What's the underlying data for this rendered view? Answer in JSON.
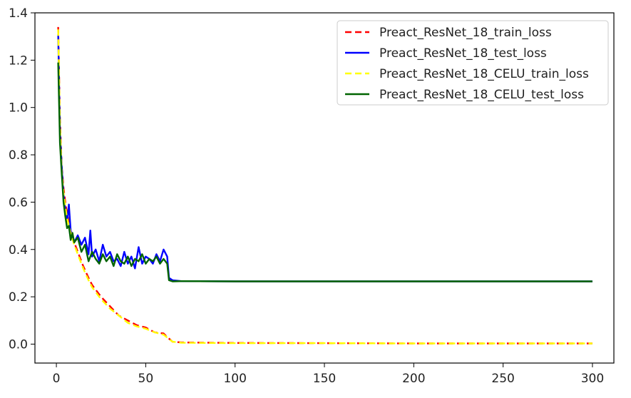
{
  "chart_data": {
    "type": "line",
    "title": "",
    "xlabel": "",
    "ylabel": "",
    "xlim": [
      -12,
      312
    ],
    "ylim": [
      -0.08,
      1.4
    ],
    "x_ticks": [
      0,
      50,
      100,
      150,
      200,
      250,
      300
    ],
    "y_ticks": [
      0.0,
      0.2,
      0.4,
      0.6,
      0.8,
      1.0,
      1.2,
      1.4
    ],
    "x_tick_labels": [
      "0",
      "50",
      "100",
      "150",
      "200",
      "250",
      "300"
    ],
    "y_tick_labels": [
      "0.0",
      "0.2",
      "0.4",
      "0.6",
      "0.8",
      "1.0",
      "1.2",
      "1.4"
    ],
    "grid": false,
    "legend_position": "top-right",
    "series": [
      {
        "name": "Preact_ResNet_18_train_loss",
        "color": "#ff0000",
        "style": "dashed",
        "points": [
          [
            1,
            1.34
          ],
          [
            2,
            0.95
          ],
          [
            3,
            0.75
          ],
          [
            4,
            0.66
          ],
          [
            5,
            0.6
          ],
          [
            6,
            0.55
          ],
          [
            8,
            0.48
          ],
          [
            10,
            0.43
          ],
          [
            12,
            0.39
          ],
          [
            15,
            0.33
          ],
          [
            18,
            0.28
          ],
          [
            20,
            0.25
          ],
          [
            25,
            0.2
          ],
          [
            30,
            0.16
          ],
          [
            35,
            0.12
          ],
          [
            40,
            0.1
          ],
          [
            45,
            0.08
          ],
          [
            50,
            0.07
          ],
          [
            55,
            0.05
          ],
          [
            60,
            0.045
          ],
          [
            62,
            0.03
          ],
          [
            65,
            0.01
          ],
          [
            70,
            0.007
          ],
          [
            100,
            0.005
          ],
          [
            150,
            0.004
          ],
          [
            200,
            0.003
          ],
          [
            250,
            0.003
          ],
          [
            300,
            0.003
          ]
        ]
      },
      {
        "name": "Preact_ResNet_18_test_loss",
        "color": "#0000ff",
        "style": "solid",
        "points": [
          [
            1,
            1.31
          ],
          [
            2,
            0.9
          ],
          [
            3,
            0.75
          ],
          [
            4,
            0.63
          ],
          [
            5,
            0.57
          ],
          [
            6,
            0.52
          ],
          [
            7,
            0.59
          ],
          [
            8,
            0.48
          ],
          [
            9,
            0.45
          ],
          [
            10,
            0.43
          ],
          [
            12,
            0.46
          ],
          [
            14,
            0.42
          ],
          [
            16,
            0.45
          ],
          [
            18,
            0.38
          ],
          [
            19,
            0.48
          ],
          [
            20,
            0.37
          ],
          [
            22,
            0.4
          ],
          [
            24,
            0.35
          ],
          [
            26,
            0.42
          ],
          [
            28,
            0.37
          ],
          [
            30,
            0.39
          ],
          [
            32,
            0.35
          ],
          [
            34,
            0.36
          ],
          [
            36,
            0.33
          ],
          [
            38,
            0.39
          ],
          [
            40,
            0.34
          ],
          [
            42,
            0.37
          ],
          [
            44,
            0.32
          ],
          [
            46,
            0.41
          ],
          [
            48,
            0.34
          ],
          [
            50,
            0.37
          ],
          [
            52,
            0.36
          ],
          [
            54,
            0.34
          ],
          [
            56,
            0.38
          ],
          [
            58,
            0.35
          ],
          [
            60,
            0.4
          ],
          [
            62,
            0.37
          ],
          [
            63,
            0.28
          ],
          [
            65,
            0.27
          ],
          [
            70,
            0.266
          ],
          [
            100,
            0.265
          ],
          [
            150,
            0.265
          ],
          [
            200,
            0.265
          ],
          [
            250,
            0.265
          ],
          [
            300,
            0.265
          ]
        ]
      },
      {
        "name": "Preact_ResNet_18_CELU_train_loss",
        "color": "#ffff00",
        "style": "dashed",
        "points": [
          [
            1,
            1.33
          ],
          [
            2,
            0.93
          ],
          [
            3,
            0.73
          ],
          [
            4,
            0.64
          ],
          [
            5,
            0.58
          ],
          [
            6,
            0.53
          ],
          [
            8,
            0.47
          ],
          [
            10,
            0.42
          ],
          [
            12,
            0.38
          ],
          [
            15,
            0.32
          ],
          [
            18,
            0.27
          ],
          [
            20,
            0.24
          ],
          [
            25,
            0.19
          ],
          [
            30,
            0.15
          ],
          [
            35,
            0.12
          ],
          [
            40,
            0.09
          ],
          [
            45,
            0.075
          ],
          [
            50,
            0.065
          ],
          [
            55,
            0.05
          ],
          [
            60,
            0.04
          ],
          [
            62,
            0.028
          ],
          [
            65,
            0.01
          ],
          [
            70,
            0.006
          ],
          [
            100,
            0.004
          ],
          [
            150,
            0.004
          ],
          [
            200,
            0.003
          ],
          [
            250,
            0.003
          ],
          [
            300,
            0.003
          ]
        ]
      },
      {
        "name": "Preact_ResNet_18_CELU_test_loss",
        "color": "#006400",
        "style": "solid",
        "points": [
          [
            1,
            1.19
          ],
          [
            2,
            0.85
          ],
          [
            3,
            0.72
          ],
          [
            4,
            0.6
          ],
          [
            5,
            0.54
          ],
          [
            6,
            0.49
          ],
          [
            7,
            0.5
          ],
          [
            8,
            0.44
          ],
          [
            9,
            0.47
          ],
          [
            10,
            0.43
          ],
          [
            12,
            0.45
          ],
          [
            14,
            0.39
          ],
          [
            16,
            0.42
          ],
          [
            18,
            0.35
          ],
          [
            20,
            0.39
          ],
          [
            22,
            0.36
          ],
          [
            24,
            0.34
          ],
          [
            26,
            0.38
          ],
          [
            28,
            0.35
          ],
          [
            30,
            0.37
          ],
          [
            32,
            0.33
          ],
          [
            34,
            0.38
          ],
          [
            36,
            0.35
          ],
          [
            38,
            0.34
          ],
          [
            40,
            0.37
          ],
          [
            42,
            0.33
          ],
          [
            44,
            0.36
          ],
          [
            46,
            0.35
          ],
          [
            48,
            0.38
          ],
          [
            50,
            0.34
          ],
          [
            52,
            0.36
          ],
          [
            54,
            0.35
          ],
          [
            56,
            0.37
          ],
          [
            58,
            0.34
          ],
          [
            60,
            0.36
          ],
          [
            62,
            0.34
          ],
          [
            63,
            0.27
          ],
          [
            65,
            0.265
          ],
          [
            70,
            0.266
          ],
          [
            100,
            0.265
          ],
          [
            150,
            0.265
          ],
          [
            200,
            0.265
          ],
          [
            250,
            0.265
          ],
          [
            300,
            0.265
          ]
        ]
      }
    ]
  }
}
